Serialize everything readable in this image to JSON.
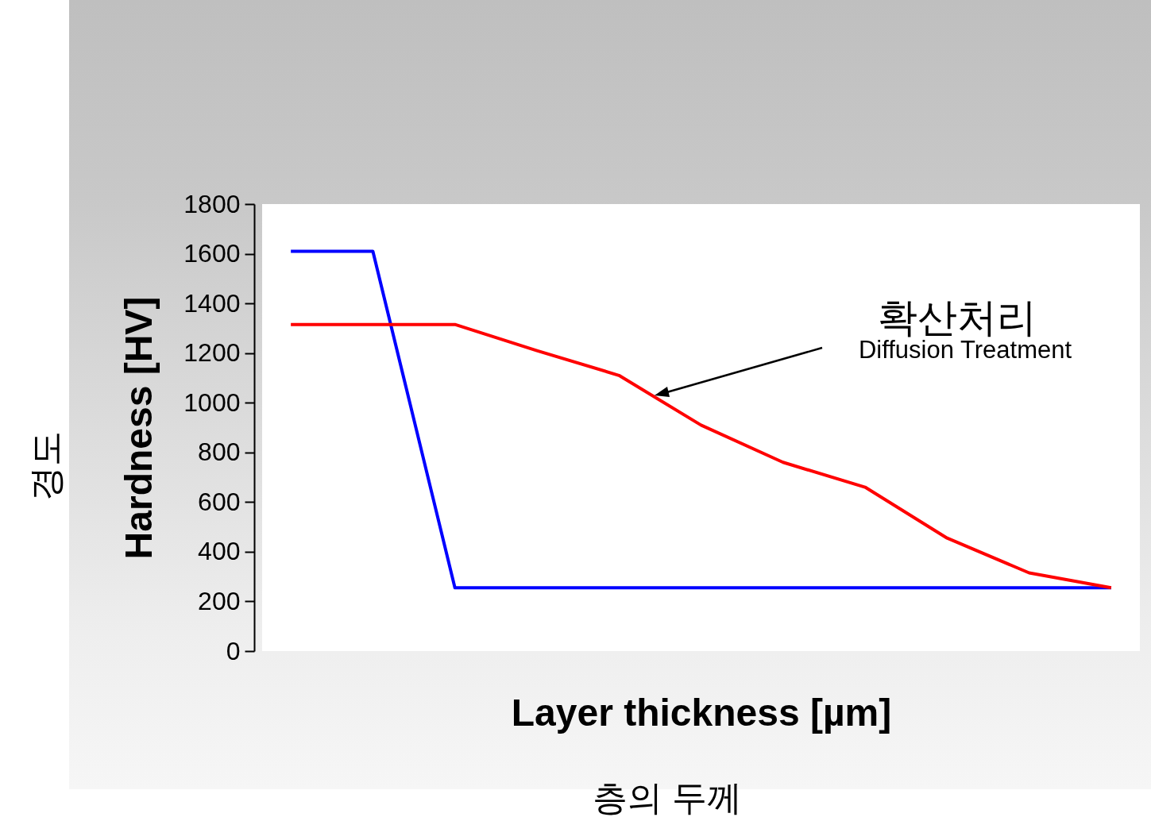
{
  "chart_data": {
    "type": "line",
    "ylabel": "Hardness [HV]",
    "xlabel": "Layer thickness [µm]",
    "categories": [
      null,
      null,
      null,
      null,
      null,
      null,
      null,
      null,
      null,
      null,
      null
    ],
    "series": [
      {
        "color": "#0000ff",
        "values": [
          1610,
          1610,
          255,
          255,
          255,
          255,
          255,
          255,
          255,
          255,
          255
        ]
      },
      {
        "color": "#ff0000",
        "values": [
          1315,
          1315,
          1315,
          1210,
          1110,
          910,
          760,
          660,
          455,
          315,
          255
        ]
      }
    ],
    "ylim": [
      0,
      1800
    ],
    "yticks": [
      0,
      200,
      400,
      600,
      800,
      1000,
      1200,
      1400,
      1600,
      1800
    ],
    "grid": false,
    "tick_labels": "y",
    "annotations": [
      "경도",
      "층의 두께",
      "확산처리",
      "Diffusion Treatment"
    ]
  }
}
